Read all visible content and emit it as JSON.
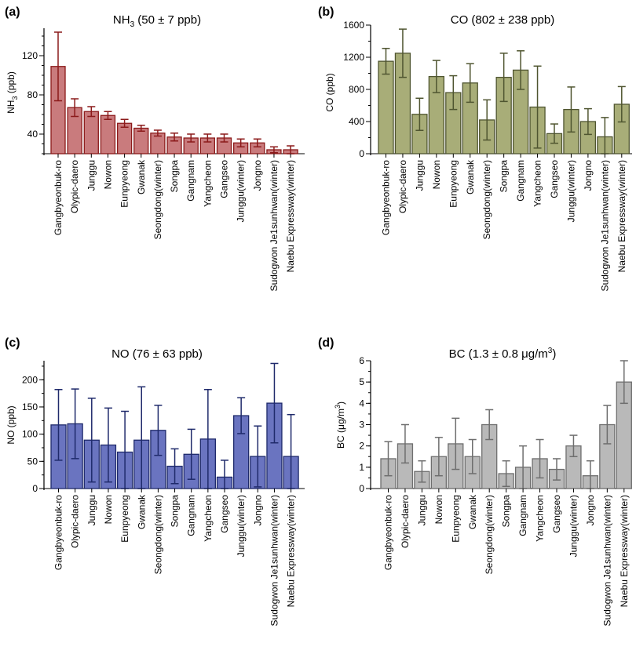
{
  "chart_data": [
    {
      "type": "bar",
      "panel_label": "(a)",
      "title": "NH3 (50 ± 7 ppb)",
      "title_main": "NH",
      "title_sub": "3",
      "title_rest": " (50 ± 7 ppb)",
      "ylabel": "NH3 (ppb)",
      "ylabel_main": "NH",
      "ylabel_sub": "3",
      "ylabel_rest": " (ppb)",
      "ylim": [
        20,
        148
      ],
      "yticks": [
        40,
        80,
        120
      ],
      "ytick_labels": [
        "40",
        "80",
        "120"
      ],
      "minor_step": 10,
      "bar_color": "#c97b7d",
      "edge_color": "#8b1a1a",
      "error_color": "#8b1a1a",
      "categories": [
        "Gangbyeonbuk-ro",
        "Olypic-daero",
        "Junggu",
        "Nowon",
        "Eunpyeong",
        "Gwanak",
        "Seongdong(winter)",
        "Songpa",
        "Gangnam",
        "Yangcheon",
        "Gangseo",
        "Junggu(winter)",
        "Jongno",
        "Sudogwon Je1sunhwan(winter)",
        "Naebu Expressway(winter)"
      ],
      "values": [
        109,
        67,
        63,
        59,
        51,
        46,
        41,
        37,
        36,
        36,
        36,
        31,
        31,
        24,
        24
      ],
      "errors": [
        35,
        9,
        5,
        4,
        4,
        3,
        3,
        4,
        4,
        4,
        4,
        4,
        4,
        3,
        4
      ]
    },
    {
      "type": "bar",
      "panel_label": "(b)",
      "title": "CO (802 ± 238 ppb)",
      "ylabel": "CO (ppb)",
      "ylim": [
        0,
        1600
      ],
      "yticks": [
        0,
        400,
        800,
        1200,
        1600
      ],
      "ytick_labels": [
        "0",
        "400",
        "800",
        "1200",
        "1600"
      ],
      "minor_step": 200,
      "bar_color": "#a8ad78",
      "edge_color": "#4f5530",
      "error_color": "#4f5530",
      "categories": [
        "Gangbyeonbuk-ro",
        "Olypic-daero",
        "Junggu",
        "Nowon",
        "Eunpyeong",
        "Gwanak",
        "Seongdong(winter)",
        "Songpa",
        "Gangnam",
        "Yangcheon",
        "Gangseo",
        "Junggu(winter)",
        "Jongno",
        "Sudogwon Je1sunhwan(winter)",
        "Naebu Expressway(winter)"
      ],
      "values": [
        1150,
        1250,
        490,
        960,
        760,
        880,
        420,
        950,
        1040,
        580,
        250,
        550,
        400,
        210,
        615
      ],
      "errors": [
        160,
        300,
        200,
        200,
        210,
        240,
        250,
        300,
        240,
        510,
        120,
        280,
        160,
        240,
        220
      ]
    },
    {
      "type": "bar",
      "panel_label": "(c)",
      "title": "NO (76 ±  63 ppb)",
      "ylabel": "NO (ppb)",
      "ylim": [
        0,
        235
      ],
      "yticks": [
        0,
        50,
        100,
        150,
        200
      ],
      "ytick_labels": [
        "0",
        "50",
        "100",
        "150",
        "200"
      ],
      "minor_step": 25,
      "bar_color": "#6a74c0",
      "edge_color": "#1f2a6b",
      "error_color": "#1f2a6b",
      "categories": [
        "Gangbyeonbuk-ro",
        "Olypic-daero",
        "Junggu",
        "Nowon",
        "Eunpyeong",
        "Gwanak",
        "Seongdong(winter)",
        "Songpa",
        "Gangnam",
        "Yangcheon",
        "Gangseo",
        "Junggu(winter)",
        "Jongno",
        "Sudogwon Je1sunhwan(winter)",
        "Naebu Expressway(winter)"
      ],
      "values": [
        117,
        119,
        89,
        80,
        67,
        89,
        107,
        41,
        63,
        91,
        21,
        134,
        59,
        157,
        59
      ],
      "errors": [
        65,
        64,
        77,
        68,
        75,
        98,
        46,
        32,
        46,
        91,
        31,
        33,
        56,
        73,
        77
      ]
    },
    {
      "type": "bar",
      "panel_label": "(d)",
      "title": "BC (1.3 ± 0.8 μg/m3)",
      "title_main": "BC (1.3 ± 0.8 μg/m",
      "title_sup": "3",
      "title_rest": ")",
      "ylabel": "BC (μg/m3)",
      "ylabel_main": "BC (μg/m",
      "ylabel_sup": "3",
      "ylabel_rest": ")",
      "ylim": [
        0,
        6
      ],
      "yticks": [
        0,
        1,
        2,
        3,
        4,
        5,
        6
      ],
      "ytick_labels": [
        "0",
        "1",
        "2",
        "3",
        "4",
        "5",
        "6"
      ],
      "minor_step": 0.5,
      "bar_color": "#b9b9b9",
      "edge_color": "#6e6e6e",
      "error_color": "#6e6e6e",
      "categories": [
        "Gangbyeonbuk-ro",
        "Olypic-daero",
        "Junggu",
        "Nowon",
        "Eunpyeong",
        "Gwanak",
        "Seongdong(winter)",
        "Songpa",
        "Gangnam",
        "Yangcheon",
        "Gangseo",
        "Junggu(winter)",
        "Jongno",
        "Sudogwon Je1sunhwan(winter)",
        "Naebu Expressway(winter)"
      ],
      "values": [
        1.4,
        2.1,
        0.8,
        1.5,
        2.1,
        1.5,
        3.0,
        0.7,
        1.0,
        1.4,
        0.9,
        2.0,
        0.6,
        3.0,
        5.0
      ],
      "errors": [
        0.8,
        0.9,
        0.5,
        0.9,
        1.2,
        0.8,
        0.7,
        0.6,
        1.0,
        0.9,
        0.5,
        0.5,
        0.7,
        0.9,
        1.0
      ]
    }
  ]
}
